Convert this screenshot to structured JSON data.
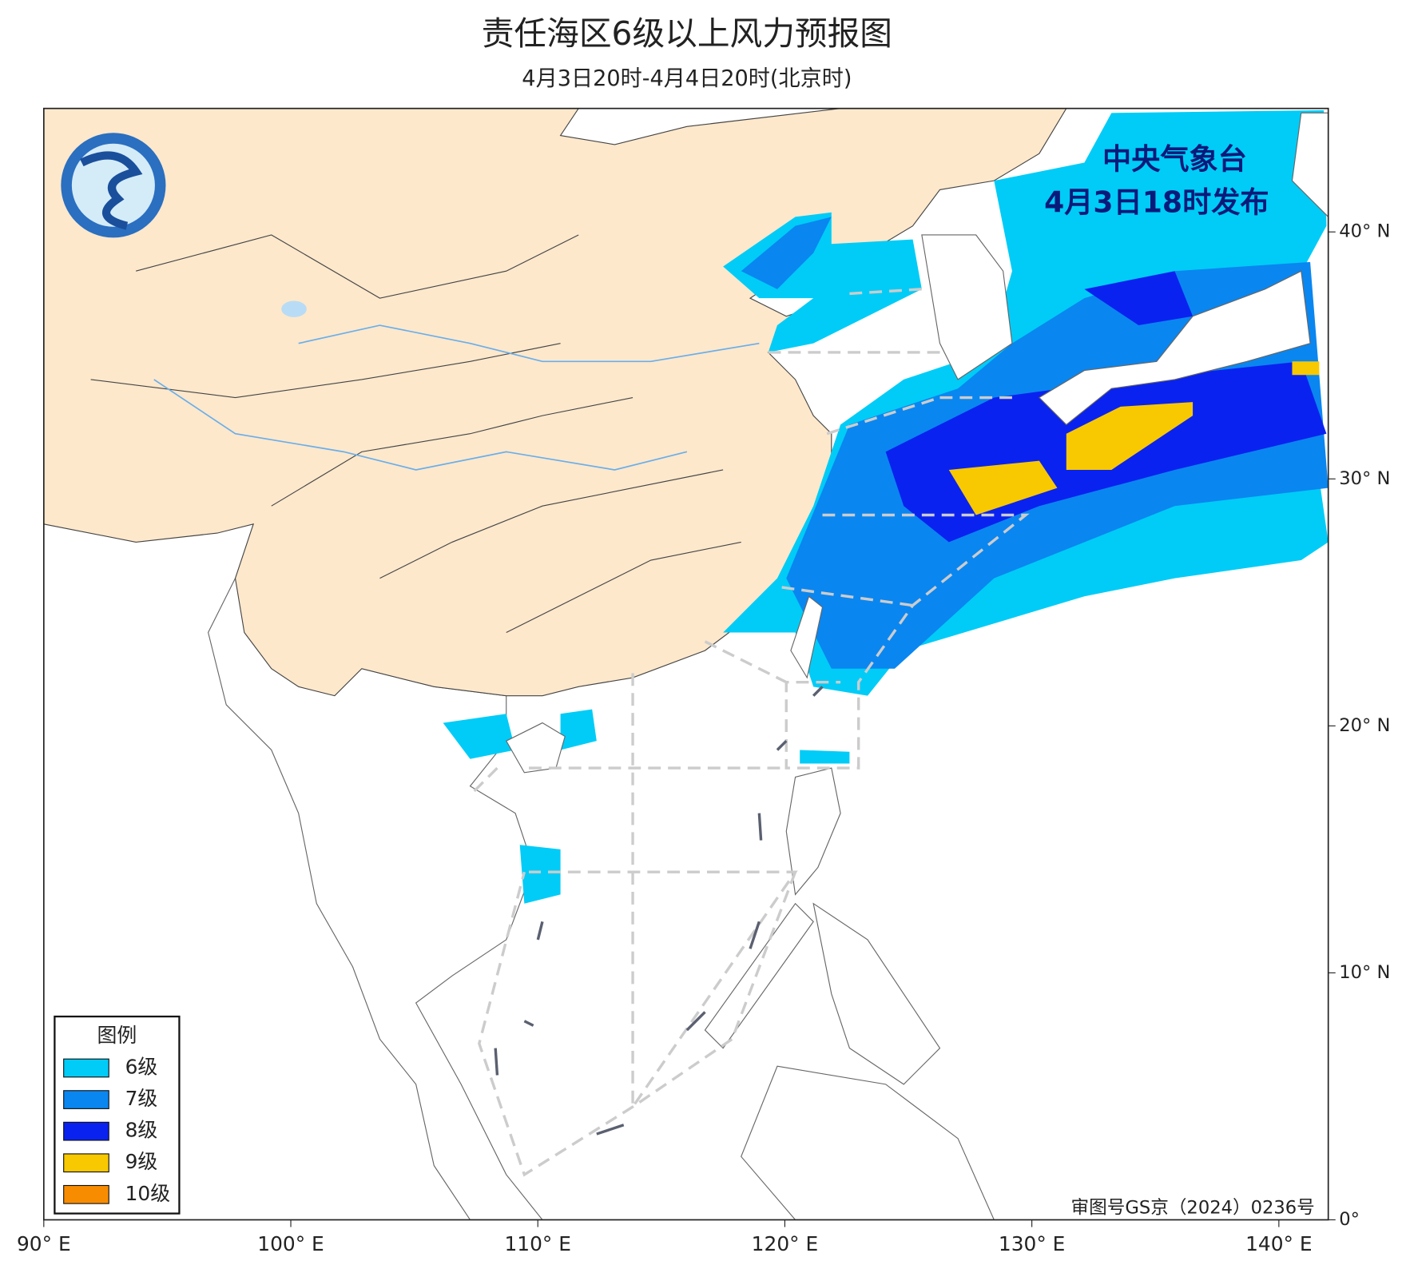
{
  "header": {
    "title": "责任海区6级以上风力预报图",
    "subtitle": "4月3日20时-4月4日20时(北京时)"
  },
  "issuer": {
    "name": "中央气象台",
    "time": "4月3日18时发布"
  },
  "map": {
    "xlim": [
      90,
      142
    ],
    "ylim": [
      0,
      45
    ],
    "xticks": [
      {
        "value": 90,
        "label": "90° E"
      },
      {
        "value": 100,
        "label": "100° E"
      },
      {
        "value": 110,
        "label": "110° E"
      },
      {
        "value": 120,
        "label": "120° E"
      },
      {
        "value": 130,
        "label": "130° E"
      },
      {
        "value": 140,
        "label": "140° E"
      }
    ],
    "yticks": [
      {
        "value": 0,
        "label": "0°"
      },
      {
        "value": 10,
        "label": "10° N"
      },
      {
        "value": 20,
        "label": "20° N"
      },
      {
        "value": 30,
        "label": "30° N"
      },
      {
        "value": 40,
        "label": "40° N"
      }
    ]
  },
  "legend": {
    "title": "图例",
    "items": [
      {
        "label": "6级",
        "color": "#00ccf7"
      },
      {
        "label": "7级",
        "color": "#0a86f0"
      },
      {
        "label": "8级",
        "color": "#0a22f0"
      },
      {
        "label": "9级",
        "color": "#f8c800"
      },
      {
        "label": "10级",
        "color": "#f88c00"
      }
    ]
  },
  "footer": "审图号GS京（2024）0236号"
}
